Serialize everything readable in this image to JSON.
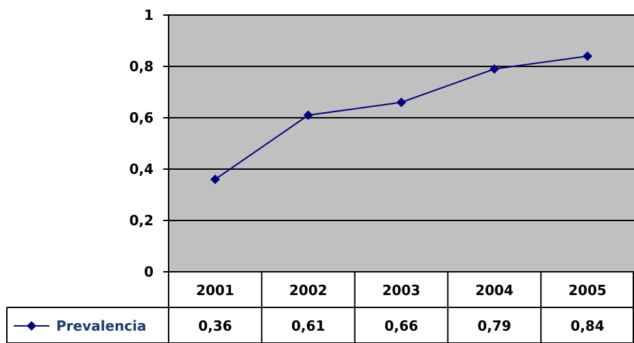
{
  "chart_data": {
    "type": "line",
    "title": "",
    "xlabel": "",
    "ylabel": "",
    "categories": [
      "2001",
      "2002",
      "2003",
      "2004",
      "2005"
    ],
    "series": [
      {
        "name": "Prevalencia",
        "values": [
          0.36,
          0.61,
          0.66,
          0.79,
          0.84
        ],
        "value_labels": [
          "0,36",
          "0,61",
          "0,66",
          "0,79",
          "0,84"
        ]
      }
    ],
    "ylim": [
      0,
      1
    ],
    "yticks": [
      {
        "value": 0,
        "label": "0"
      },
      {
        "value": 0.2,
        "label": "0,2"
      },
      {
        "value": 0.4,
        "label": "0,4"
      },
      {
        "value": 0.6,
        "label": "0,6"
      },
      {
        "value": 0.8,
        "label": "0,8"
      },
      {
        "value": 1,
        "label": "1"
      }
    ],
    "grid": true,
    "legend": "data-table",
    "colors": {
      "plot_background": "#c0c0c0",
      "series": "#000080",
      "grid": "#000000"
    }
  }
}
